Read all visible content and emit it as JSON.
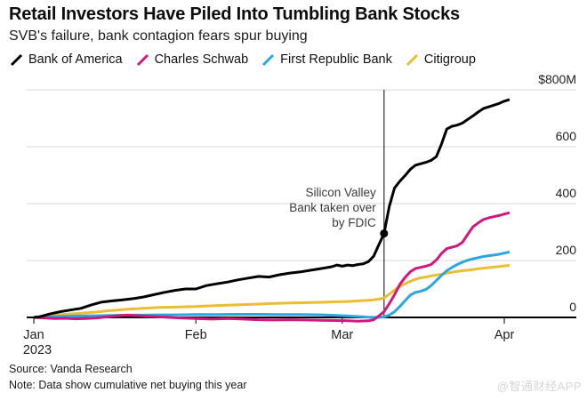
{
  "header": {
    "title": "Retail Investors Have Piled Into Tumbling Bank Stocks",
    "subtitle": "SVB's failure, bank contagion fears spur buying"
  },
  "chart_data": {
    "type": "line",
    "title": "Retail Investors Have Piled Into Tumbling Bank Stocks",
    "subtitle": "SVB's failure, bank contagion fears spur buying",
    "unit": "USD millions, cumulative net buying",
    "grid": true,
    "legend_position": "top",
    "x_axis": {
      "unit": "days since Jan 1, 2023",
      "range": [
        0,
        91
      ],
      "ticks": [
        {
          "day": 0,
          "label": "Jan",
          "sublabel": "2023"
        },
        {
          "day": 31,
          "label": "Feb"
        },
        {
          "day": 59,
          "label": "Mar"
        },
        {
          "day": 90,
          "label": "Apr"
        }
      ]
    },
    "y_axis": {
      "range": [
        0,
        800
      ],
      "ticks": [
        {
          "value": 0,
          "label": "0"
        },
        {
          "value": 200,
          "label": "200"
        },
        {
          "value": 400,
          "label": "400"
        },
        {
          "value": 600,
          "label": "600"
        },
        {
          "value": 800,
          "label": "$800M"
        }
      ]
    },
    "annotation": {
      "text_lines": [
        "Silicon Valley",
        "Bank taken over",
        "by FDIC"
      ],
      "event_day": 67,
      "marker": {
        "series": "Bank of America",
        "day": 67,
        "value": 295
      }
    },
    "colors": {
      "grid": "#d9d9d9",
      "baseline": "#000000",
      "event_line": "#2f2f2f",
      "annotation_text": "#3b3b3b",
      "axis_label": "#1f1f1f"
    },
    "series": [
      {
        "name": "Bank of America",
        "color": "#000000",
        "points": [
          [
            0,
            0
          ],
          [
            1,
            2
          ],
          [
            3,
            12
          ],
          [
            5,
            20
          ],
          [
            7,
            26
          ],
          [
            9,
            32
          ],
          [
            11,
            44
          ],
          [
            13,
            54
          ],
          [
            15,
            58
          ],
          [
            17,
            62
          ],
          [
            19,
            66
          ],
          [
            21,
            72
          ],
          [
            23,
            80
          ],
          [
            25,
            88
          ],
          [
            27,
            95
          ],
          [
            29,
            100
          ],
          [
            31,
            100
          ],
          [
            33,
            112
          ],
          [
            35,
            118
          ],
          [
            37,
            124
          ],
          [
            39,
            132
          ],
          [
            41,
            138
          ],
          [
            43,
            144
          ],
          [
            45,
            142
          ],
          [
            47,
            150
          ],
          [
            49,
            156
          ],
          [
            51,
            160
          ],
          [
            53,
            166
          ],
          [
            55,
            172
          ],
          [
            57,
            178
          ],
          [
            58,
            184
          ],
          [
            59,
            180
          ],
          [
            60,
            184
          ],
          [
            61,
            182
          ],
          [
            62,
            186
          ],
          [
            63,
            188
          ],
          [
            64,
            196
          ],
          [
            65,
            215
          ],
          [
            66,
            255
          ],
          [
            67,
            295
          ],
          [
            68,
            390
          ],
          [
            69,
            455
          ],
          [
            70,
            478
          ],
          [
            71,
            498
          ],
          [
            72,
            520
          ],
          [
            73,
            535
          ],
          [
            74,
            540
          ],
          [
            75,
            545
          ],
          [
            76,
            552
          ],
          [
            77,
            565
          ],
          [
            78,
            610
          ],
          [
            79,
            662
          ],
          [
            80,
            672
          ],
          [
            81,
            676
          ],
          [
            82,
            683
          ],
          [
            83,
            696
          ],
          [
            84,
            708
          ],
          [
            85,
            722
          ],
          [
            86,
            734
          ],
          [
            87,
            740
          ],
          [
            88,
            746
          ],
          [
            89,
            752
          ],
          [
            90,
            760
          ],
          [
            91,
            766
          ]
        ]
      },
      {
        "name": "Charles Schwab",
        "color": "#d1187f",
        "points": [
          [
            0,
            0
          ],
          [
            2,
            -2
          ],
          [
            4,
            -4
          ],
          [
            6,
            -3
          ],
          [
            8,
            -5
          ],
          [
            10,
            -4
          ],
          [
            12,
            -2
          ],
          [
            14,
            2
          ],
          [
            16,
            6
          ],
          [
            18,
            8
          ],
          [
            20,
            6
          ],
          [
            22,
            4
          ],
          [
            24,
            2
          ],
          [
            26,
            0
          ],
          [
            28,
            -2
          ],
          [
            31,
            -4
          ],
          [
            34,
            -6
          ],
          [
            37,
            -4
          ],
          [
            40,
            -6
          ],
          [
            43,
            -8
          ],
          [
            46,
            -9
          ],
          [
            49,
            -8
          ],
          [
            52,
            -9
          ],
          [
            55,
            -10
          ],
          [
            58,
            -11
          ],
          [
            60,
            -12
          ],
          [
            62,
            -13
          ],
          [
            64,
            -12
          ],
          [
            65,
            -8
          ],
          [
            66,
            5
          ],
          [
            67,
            20
          ],
          [
            68,
            48
          ],
          [
            69,
            80
          ],
          [
            70,
            115
          ],
          [
            71,
            140
          ],
          [
            72,
            160
          ],
          [
            73,
            172
          ],
          [
            74,
            176
          ],
          [
            75,
            180
          ],
          [
            76,
            186
          ],
          [
            77,
            202
          ],
          [
            78,
            225
          ],
          [
            79,
            242
          ],
          [
            80,
            247
          ],
          [
            81,
            252
          ],
          [
            82,
            264
          ],
          [
            83,
            292
          ],
          [
            84,
            318
          ],
          [
            85,
            332
          ],
          [
            86,
            344
          ],
          [
            87,
            350
          ],
          [
            88,
            354
          ],
          [
            89,
            358
          ],
          [
            90,
            363
          ],
          [
            91,
            368
          ]
        ]
      },
      {
        "name": "First Republic Bank",
        "color": "#2ba6de",
        "points": [
          [
            0,
            0
          ],
          [
            3,
            2
          ],
          [
            6,
            4
          ],
          [
            9,
            5
          ],
          [
            12,
            6
          ],
          [
            15,
            7
          ],
          [
            18,
            8
          ],
          [
            21,
            8
          ],
          [
            24,
            9
          ],
          [
            27,
            9
          ],
          [
            31,
            10
          ],
          [
            35,
            10
          ],
          [
            39,
            11
          ],
          [
            43,
            11
          ],
          [
            47,
            10
          ],
          [
            51,
            10
          ],
          [
            55,
            9
          ],
          [
            58,
            7
          ],
          [
            60,
            5
          ],
          [
            62,
            3
          ],
          [
            64,
            1
          ],
          [
            66,
            0
          ],
          [
            67,
            2
          ],
          [
            68,
            8
          ],
          [
            69,
            20
          ],
          [
            70,
            38
          ],
          [
            71,
            58
          ],
          [
            72,
            78
          ],
          [
            73,
            88
          ],
          [
            74,
            92
          ],
          [
            75,
            98
          ],
          [
            76,
            112
          ],
          [
            77,
            130
          ],
          [
            78,
            148
          ],
          [
            79,
            164
          ],
          [
            80,
            176
          ],
          [
            81,
            186
          ],
          [
            82,
            194
          ],
          [
            83,
            201
          ],
          [
            84,
            206
          ],
          [
            85,
            210
          ],
          [
            86,
            214
          ],
          [
            87,
            217
          ],
          [
            88,
            219
          ],
          [
            89,
            222
          ],
          [
            90,
            226
          ],
          [
            91,
            230
          ]
        ]
      },
      {
        "name": "Citigroup",
        "color": "#ecbd31",
        "points": [
          [
            0,
            0
          ],
          [
            2,
            4
          ],
          [
            4,
            8
          ],
          [
            6,
            11
          ],
          [
            8,
            13
          ],
          [
            10,
            16
          ],
          [
            12,
            19
          ],
          [
            14,
            23
          ],
          [
            16,
            26
          ],
          [
            18,
            29
          ],
          [
            20,
            31
          ],
          [
            22,
            33
          ],
          [
            24,
            35
          ],
          [
            26,
            36
          ],
          [
            28,
            37
          ],
          [
            31,
            38
          ],
          [
            34,
            41
          ],
          [
            37,
            43
          ],
          [
            40,
            45
          ],
          [
            43,
            47
          ],
          [
            46,
            49
          ],
          [
            49,
            51
          ],
          [
            52,
            52
          ],
          [
            55,
            53
          ],
          [
            58,
            55
          ],
          [
            60,
            56
          ],
          [
            62,
            58
          ],
          [
            64,
            60
          ],
          [
            65,
            62
          ],
          [
            66,
            64
          ],
          [
            67,
            68
          ],
          [
            68,
            82
          ],
          [
            69,
            96
          ],
          [
            70,
            108
          ],
          [
            71,
            118
          ],
          [
            72,
            127
          ],
          [
            73,
            134
          ],
          [
            74,
            139
          ],
          [
            75,
            142
          ],
          [
            76,
            146
          ],
          [
            77,
            149
          ],
          [
            78,
            152
          ],
          [
            79,
            156
          ],
          [
            80,
            159
          ],
          [
            81,
            162
          ],
          [
            82,
            164
          ],
          [
            83,
            166
          ],
          [
            84,
            168
          ],
          [
            85,
            171
          ],
          [
            86,
            173
          ],
          [
            87,
            175
          ],
          [
            88,
            177
          ],
          [
            89,
            179
          ],
          [
            90,
            181
          ],
          [
            91,
            183
          ]
        ]
      }
    ]
  },
  "footer": {
    "source": "Source: Vanda Research",
    "note": "Note: Data show cumulative net buying this year",
    "watermark": "@智通财经APP"
  }
}
